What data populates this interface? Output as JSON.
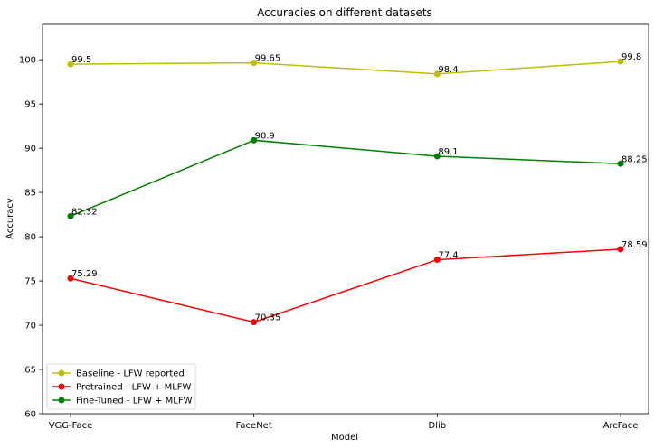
{
  "chart_data": {
    "type": "line",
    "title": "Accuracies on different datasets",
    "xlabel": "Model",
    "ylabel": "Accuracy",
    "categories": [
      "VGG-Face",
      "FaceNet",
      "Dlib",
      "ArcFace"
    ],
    "ylim": [
      60,
      104
    ],
    "yticks": [
      60,
      65,
      70,
      75,
      80,
      85,
      90,
      95,
      100
    ],
    "grid": false,
    "legend_position": "lower-left",
    "series": [
      {
        "name": "Baseline - LFW reported",
        "color": "#bfbf00",
        "values": [
          99.5,
          99.65,
          98.4,
          99.8
        ],
        "labels": [
          "99.5",
          "99.65",
          "98.4",
          "99.8"
        ]
      },
      {
        "name": "Pretrained - LFW + MLFW",
        "color": "#ff0000",
        "values": [
          75.29,
          70.35,
          77.4,
          78.59
        ],
        "labels": [
          "75.29",
          "70.35",
          "77.4",
          "78.59"
        ]
      },
      {
        "name": "Fine-Tuned - LFW + MLFW",
        "color": "#008000",
        "values": [
          82.32,
          90.9,
          89.1,
          88.25
        ],
        "labels": [
          "82.32",
          "90.9",
          "89.1",
          "88.25"
        ]
      }
    ]
  }
}
